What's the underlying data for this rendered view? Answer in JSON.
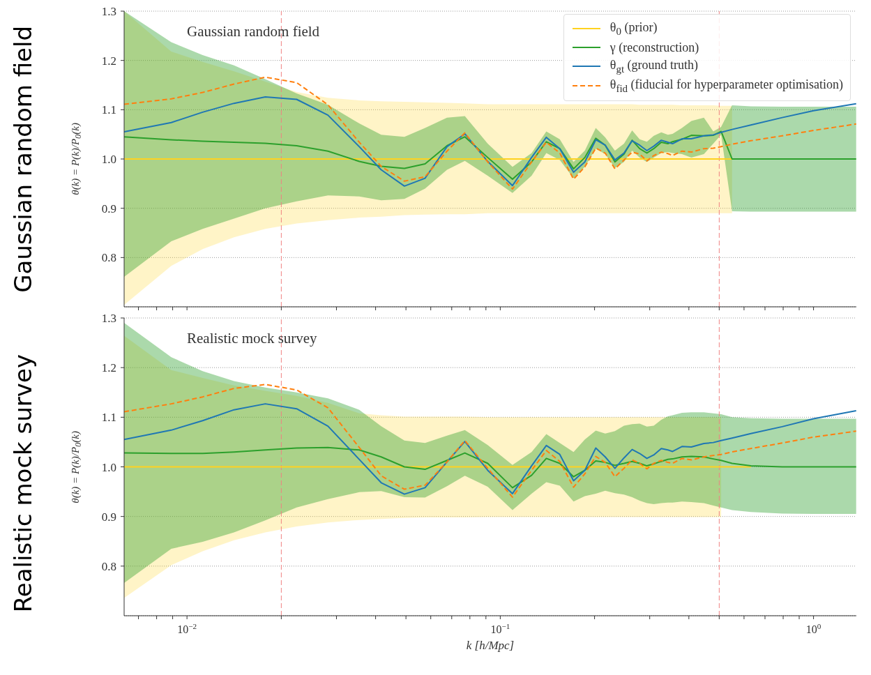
{
  "chart_data": [
    {
      "type": "line",
      "title": "Gaussian random field",
      "ylabel": "θ(k) = P(k)/P$_{0}$(k)",
      "annotations": [
        "Gaussian random field"
      ],
      "x": [
        0.0063,
        0.00891,
        0.01122,
        0.01413,
        0.01778,
        0.02239,
        0.02818,
        0.03548,
        0.04169,
        0.04943,
        0.05754,
        0.06761,
        0.07709,
        0.0912,
        0.1094,
        0.1259,
        0.1403,
        0.1549,
        0.1714,
        0.1862,
        0.2018,
        0.2163,
        0.2323,
        0.2483,
        0.2636,
        0.2786,
        0.2938,
        0.309,
        0.3266,
        0.3428,
        0.3548,
        0.3802,
        0.4074,
        0.4467,
        0.4786,
        0.507,
        0.5495,
        0.631,
        0.7943,
        1.0,
        1.368
      ],
      "series": [
        {
          "name": "θ$_{0}$ (prior)",
          "color": "#ffd21f",
          "values": [
            1,
            1,
            1,
            1,
            1,
            1,
            1,
            1,
            1,
            1,
            1,
            1,
            1,
            1,
            1,
            1,
            1,
            1,
            1,
            1,
            1,
            1,
            1,
            1,
            1,
            1,
            1,
            1,
            1,
            1,
            1,
            1,
            1,
            1,
            1,
            1,
            1,
            null,
            null,
            null,
            null
          ],
          "lower": [
            0.704,
            0.783,
            0.817,
            0.841,
            0.858,
            0.869,
            0.876,
            0.881,
            0.883,
            0.886,
            0.887,
            0.888,
            0.888,
            0.89,
            0.89,
            0.89,
            0.89,
            0.89,
            0.89,
            0.89,
            0.89,
            0.89,
            0.89,
            0.89,
            0.89,
            0.89,
            0.89,
            0.89,
            0.89,
            0.89,
            0.89,
            0.89,
            0.89,
            0.89,
            0.89,
            0.89,
            0.89,
            null,
            null,
            null,
            null
          ],
          "upper": [
            1.3,
            1.218,
            1.197,
            1.178,
            1.157,
            1.136,
            1.124,
            1.119,
            1.117,
            1.116,
            1.115,
            1.114,
            1.113,
            1.111,
            1.111,
            1.111,
            1.111,
            1.111,
            1.111,
            1.111,
            1.111,
            1.111,
            1.111,
            1.111,
            1.111,
            1.11,
            1.11,
            1.11,
            1.11,
            1.11,
            1.11,
            1.109,
            1.109,
            1.109,
            1.109,
            1.108,
            1.108,
            null,
            null,
            null,
            null
          ]
        },
        {
          "name": "γ (reconstruction)",
          "color": "#2ca02c",
          "values": [
            1.045,
            1.039,
            1.036,
            1.034,
            1.032,
            1.027,
            1.016,
            0.995,
            0.985,
            0.981,
            0.99,
            1.027,
            1.045,
            1.003,
            0.959,
            0.994,
            1.035,
            1.021,
            0.98,
            1.003,
            1.042,
            1.028,
            0.994,
            1.01,
            1.038,
            1.021,
            1.012,
            1.021,
            1.034,
            1.031,
            1.035,
            1.04,
            1.048,
            1.047,
            1.048,
            1.056,
            1.0,
            1.0,
            1.0,
            1.0,
            1.0
          ],
          "lower": [
            0.761,
            0.833,
            0.858,
            0.879,
            0.9,
            0.914,
            0.926,
            0.924,
            0.916,
            0.919,
            0.94,
            0.978,
            0.996,
            0.966,
            0.931,
            0.966,
            1.012,
            0.998,
            0.961,
            0.984,
            1.021,
            1.01,
            0.982,
            0.994,
            1.017,
            1.003,
            0.994,
            1.003,
            1.012,
            1.014,
            1.012,
            1.01,
            1.003,
            1.01,
            1.031,
            1.049,
            0.894,
            0.893,
            0.893,
            0.893,
            0.893
          ],
          "upper": [
            1.3,
            1.237,
            1.211,
            1.19,
            1.162,
            1.133,
            1.11,
            1.072,
            1.049,
            1.045,
            1.063,
            1.084,
            1.087,
            1.031,
            0.984,
            1.012,
            1.056,
            1.04,
            0.994,
            1.017,
            1.063,
            1.044,
            1.017,
            1.031,
            1.058,
            1.04,
            1.035,
            1.047,
            1.054,
            1.049,
            1.051,
            1.063,
            1.077,
            1.084,
            1.056,
            1.065,
            1.109,
            1.107,
            1.106,
            1.106,
            1.106
          ]
        },
        {
          "name": "θ$_{gt}$ (ground truth)",
          "color": "#1f77b4",
          "values": [
            1.055,
            1.074,
            1.095,
            1.113,
            1.126,
            1.121,
            1.089,
            1.025,
            0.978,
            0.945,
            0.961,
            1.025,
            1.051,
            0.995,
            0.946,
            1.003,
            1.044,
            1.021,
            0.973,
            0.994,
            1.039,
            1.028,
            0.998,
            1.012,
            1.037,
            1.028,
            1.017,
            1.026,
            1.038,
            1.034,
            1.031,
            1.041,
            1.041,
            1.047,
            1.049,
            1.054,
            1.06,
            1.069,
            1.084,
            1.098,
            1.112
          ]
        },
        {
          "name": "θ$_{fid}$ (fiducial for hyperparameter optimisation)",
          "color": "#ff7f0e",
          "line_style": "dashed",
          "values": [
            1.111,
            1.122,
            1.135,
            1.152,
            1.166,
            1.155,
            1.11,
            1.034,
            0.985,
            0.955,
            0.964,
            1.016,
            1.053,
            0.994,
            0.939,
            0.994,
            1.034,
            1.012,
            0.959,
            0.984,
            1.022,
            1.012,
            0.98,
            0.998,
            1.014,
            1.01,
            0.996,
            1.007,
            1.014,
            1.011,
            1.007,
            1.016,
            1.014,
            1.021,
            1.022,
            1.025,
            1.03,
            1.037,
            1.047,
            1.058,
            1.071
          ]
        }
      ],
      "xlim": [
        0.0063,
        1.37
      ],
      "ylim": [
        0.7,
        1.3
      ],
      "xticks": [
        {
          "value": 0.007,
          "label": null
        },
        {
          "value": 0.008,
          "label": null
        },
        {
          "value": 0.009,
          "label": null
        },
        {
          "value": 0.01,
          "label": null
        },
        {
          "value": 0.02,
          "label": null
        },
        {
          "value": 0.03,
          "label": null
        },
        {
          "value": 0.04,
          "label": null
        },
        {
          "value": 0.05,
          "label": null
        },
        {
          "value": 0.06,
          "label": null
        },
        {
          "value": 0.07,
          "label": null
        },
        {
          "value": 0.08,
          "label": null
        },
        {
          "value": 0.09,
          "label": null
        },
        {
          "value": 0.1,
          "label": null
        },
        {
          "value": 0.2,
          "label": null
        },
        {
          "value": 0.3,
          "label": null
        },
        {
          "value": 0.4,
          "label": null
        },
        {
          "value": 0.5,
          "label": null
        },
        {
          "value": 0.6,
          "label": null
        },
        {
          "value": 0.7,
          "label": null
        },
        {
          "value": 0.8,
          "label": null
        },
        {
          "value": 0.9,
          "label": null
        },
        {
          "value": 1,
          "label": null
        }
      ],
      "yticks": [
        0.8,
        0.9,
        {
          "value": 1,
          "label": "1.0"
        },
        1.1,
        1.2,
        1.3
      ],
      "log": "x",
      "grid": "y",
      "legend": "top right",
      "tick_labels": "y",
      "ref_lines": [
        {
          "axis": "x",
          "value": 0.02,
          "color": "#f08080",
          "line_style": "dashed"
        },
        {
          "axis": "x",
          "value": 0.5,
          "color": "#f08080",
          "line_style": "dashed"
        }
      ]
    },
    {
      "type": "line",
      "title": "Realistic mock survey",
      "xlabel": "k [h/Mpc]",
      "ylabel": "θ(k) = P(k)/P$_{0}$(k)",
      "annotations": [
        "Realistic mock survey"
      ],
      "x": [
        0.0063,
        0.00891,
        0.01122,
        0.01413,
        0.01778,
        0.02239,
        0.02818,
        0.03548,
        0.04169,
        0.04943,
        0.05754,
        0.06761,
        0.07709,
        0.0912,
        0.1094,
        0.1259,
        0.1403,
        0.1549,
        0.1714,
        0.1862,
        0.2018,
        0.2163,
        0.2323,
        0.2483,
        0.2636,
        0.2786,
        0.2938,
        0.309,
        0.3266,
        0.3428,
        0.3548,
        0.3802,
        0.4074,
        0.4467,
        0.4786,
        0.507,
        0.5495,
        0.631,
        0.7943,
        1.0,
        1.368
      ],
      "series": [
        {
          "color": "#ffd21f",
          "values": [
            1,
            1,
            1,
            1,
            1,
            1,
            1,
            1,
            1,
            1,
            1,
            1,
            1,
            1,
            1,
            1,
            1,
            1,
            1,
            1,
            1,
            1,
            1,
            1,
            1,
            1,
            1,
            1,
            1,
            1,
            1,
            1,
            1,
            1,
            1,
            1,
            1,
            1,
            null,
            null,
            null
          ],
          "lower": [
            0.736,
            0.802,
            0.83,
            0.852,
            0.868,
            0.88,
            0.888,
            0.893,
            0.895,
            0.897,
            0.898,
            0.898,
            0.898,
            0.899,
            0.899,
            0.899,
            0.899,
            0.899,
            0.899,
            0.899,
            0.899,
            0.899,
            0.899,
            0.899,
            0.899,
            0.899,
            0.899,
            0.899,
            0.899,
            0.899,
            0.899,
            0.899,
            0.899,
            0.899,
            0.899,
            0.899,
            null,
            null,
            null,
            null,
            null
          ],
          "upper": [
            1.264,
            1.195,
            1.179,
            1.164,
            1.153,
            1.143,
            1.129,
            1.108,
            1.104,
            1.101,
            1.101,
            1.101,
            1.101,
            1.1,
            1.1,
            1.1,
            1.1,
            1.1,
            1.1,
            1.1,
            1.1,
            1.1,
            1.1,
            1.1,
            1.1,
            1.1,
            1.1,
            1.1,
            1.1,
            1.1,
            1.1,
            1.1,
            1.1,
            1.1,
            1.1,
            1.1,
            null,
            null,
            null,
            null,
            null
          ]
        },
        {
          "color": "#2ca02c",
          "values": [
            1.028,
            1.027,
            1.027,
            1.03,
            1.034,
            1.038,
            1.039,
            1.034,
            1.02,
            1.0,
            0.995,
            1.013,
            1.028,
            1.007,
            0.958,
            0.983,
            1.017,
            1.007,
            0.98,
            0.993,
            1.012,
            1.009,
            1.003,
            1.007,
            1.011,
            1.007,
            1.002,
            1.006,
            1.011,
            1.015,
            1.016,
            1.02,
            1.021,
            1.02,
            1.016,
            1.013,
            1.007,
            1.002,
            1.0,
            1.0,
            1.0
          ],
          "lower": [
            0.766,
            0.835,
            0.849,
            0.868,
            0.892,
            0.918,
            0.935,
            0.949,
            0.951,
            0.939,
            0.938,
            0.961,
            0.982,
            0.96,
            0.913,
            0.946,
            0.969,
            0.962,
            0.93,
            0.941,
            0.946,
            0.952,
            0.947,
            0.944,
            0.939,
            0.932,
            0.927,
            0.925,
            0.927,
            0.928,
            0.928,
            0.93,
            0.929,
            0.927,
            0.922,
            0.918,
            0.913,
            0.909,
            0.906,
            0.905,
            0.905
          ],
          "upper": [
            1.29,
            1.221,
            1.193,
            1.173,
            1.16,
            1.15,
            1.138,
            1.115,
            1.082,
            1.053,
            1.048,
            1.063,
            1.074,
            1.044,
            1.004,
            1.03,
            1.066,
            1.048,
            1.03,
            1.055,
            1.073,
            1.067,
            1.072,
            1.083,
            1.086,
            1.087,
            1.081,
            1.083,
            1.095,
            1.102,
            1.104,
            1.109,
            1.11,
            1.11,
            1.108,
            1.106,
            1.1,
            1.098,
            1.097,
            1.097,
            1.097
          ]
        },
        {
          "color": "#1f77b4",
          "values": [
            1.055,
            1.074,
            1.093,
            1.115,
            1.127,
            1.117,
            1.082,
            1.015,
            0.968,
            0.945,
            0.958,
            1.01,
            1.051,
            0.993,
            0.946,
            1.002,
            1.043,
            1.025,
            0.972,
            0.993,
            1.038,
            1.02,
            0.997,
            1.018,
            1.035,
            1.027,
            1.017,
            1.024,
            1.037,
            1.034,
            1.031,
            1.041,
            1.04,
            1.047,
            1.049,
            1.053,
            1.058,
            1.067,
            1.081,
            1.097,
            1.113
          ]
        },
        {
          "color": "#ff7f0e",
          "line_style": "dashed",
          "values": [
            1.111,
            1.127,
            1.141,
            1.158,
            1.166,
            1.155,
            1.119,
            1.039,
            0.982,
            0.955,
            0.963,
            1.01,
            1.053,
            0.997,
            0.939,
            0.993,
            1.033,
            1.011,
            0.959,
            0.986,
            1.021,
            1.009,
            0.98,
            0.997,
            1.014,
            1.007,
            0.996,
            1.007,
            1.013,
            1.009,
            1.007,
            1.017,
            1.014,
            1.02,
            1.023,
            1.025,
            1.03,
            1.037,
            1.048,
            1.06,
            1.072
          ]
        }
      ],
      "xlim": [
        0.0063,
        1.37
      ],
      "ylim": [
        0.7,
        1.3
      ],
      "xticks": [
        {
          "value": 0.007,
          "label": null
        },
        {
          "value": 0.008,
          "label": null
        },
        {
          "value": 0.009,
          "label": null
        },
        {
          "value": 0.01,
          "label": "10$^{−2}$"
        },
        {
          "value": 0.02,
          "label": null
        },
        {
          "value": 0.03,
          "label": null
        },
        {
          "value": 0.04,
          "label": null
        },
        {
          "value": 0.05,
          "label": null
        },
        {
          "value": 0.06,
          "label": null
        },
        {
          "value": 0.07,
          "label": null
        },
        {
          "value": 0.08,
          "label": null
        },
        {
          "value": 0.09,
          "label": null
        },
        {
          "value": 0.1,
          "label": "10$^{−1}$"
        },
        {
          "value": 0.2,
          "label": null
        },
        {
          "value": 0.3,
          "label": null
        },
        {
          "value": 0.4,
          "label": null
        },
        {
          "value": 0.5,
          "label": null
        },
        {
          "value": 0.6,
          "label": null
        },
        {
          "value": 0.7,
          "label": null
        },
        {
          "value": 0.8,
          "label": null
        },
        {
          "value": 0.9,
          "label": null
        },
        {
          "value": 1,
          "label": "10$^{0}$"
        }
      ],
      "yticks": [
        0.8,
        0.9,
        {
          "value": 1,
          "label": "1.0"
        },
        1.1,
        1.2,
        1.3
      ],
      "log": "x",
      "grid": "y",
      "ref_lines": [
        {
          "axis": "x",
          "value": 0.02,
          "color": "#f08080",
          "line_style": "dashed"
        },
        {
          "axis": "x",
          "value": 0.5,
          "color": "#f08080",
          "line_style": "dashed"
        }
      ]
    }
  ]
}
